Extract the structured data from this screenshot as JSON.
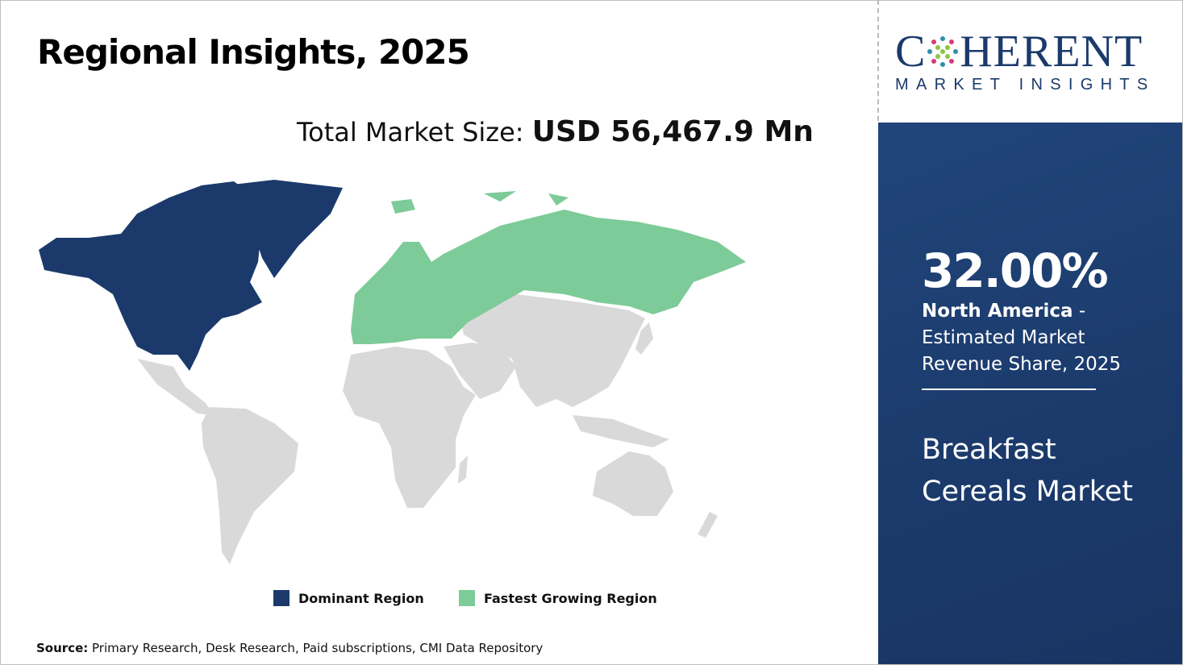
{
  "header": {
    "title": "Regional Insights, 2025"
  },
  "total": {
    "label": "Total Market Size:",
    "value": "USD 56,467.9 Mn"
  },
  "map": {
    "dominant_region": "North America",
    "fastest_growing_region": "Europe",
    "colors": {
      "dominant": "#1b3a6b",
      "fastest": "#7dcb98",
      "other": "#d9d9d9"
    }
  },
  "legend": [
    {
      "label": "Dominant Region",
      "color": "#1b3a6b"
    },
    {
      "label": "Fastest Growing Region",
      "color": "#7dcb98"
    }
  ],
  "source": {
    "label": "Source:",
    "text": " Primary Research, Desk Research, Paid subscriptions, CMI Data Repository"
  },
  "logo": {
    "line1_a": "C",
    "line1_b": "HERENT",
    "line2": "MARKET INSIGHTS"
  },
  "panel": {
    "percent": "32.00%",
    "region": "North America",
    "desc": " - Estimated Market Revenue Share, 2025",
    "market_line1": "Breakfast",
    "market_line2": "Cereals Market",
    "bg_color": "#1b3a6b"
  }
}
